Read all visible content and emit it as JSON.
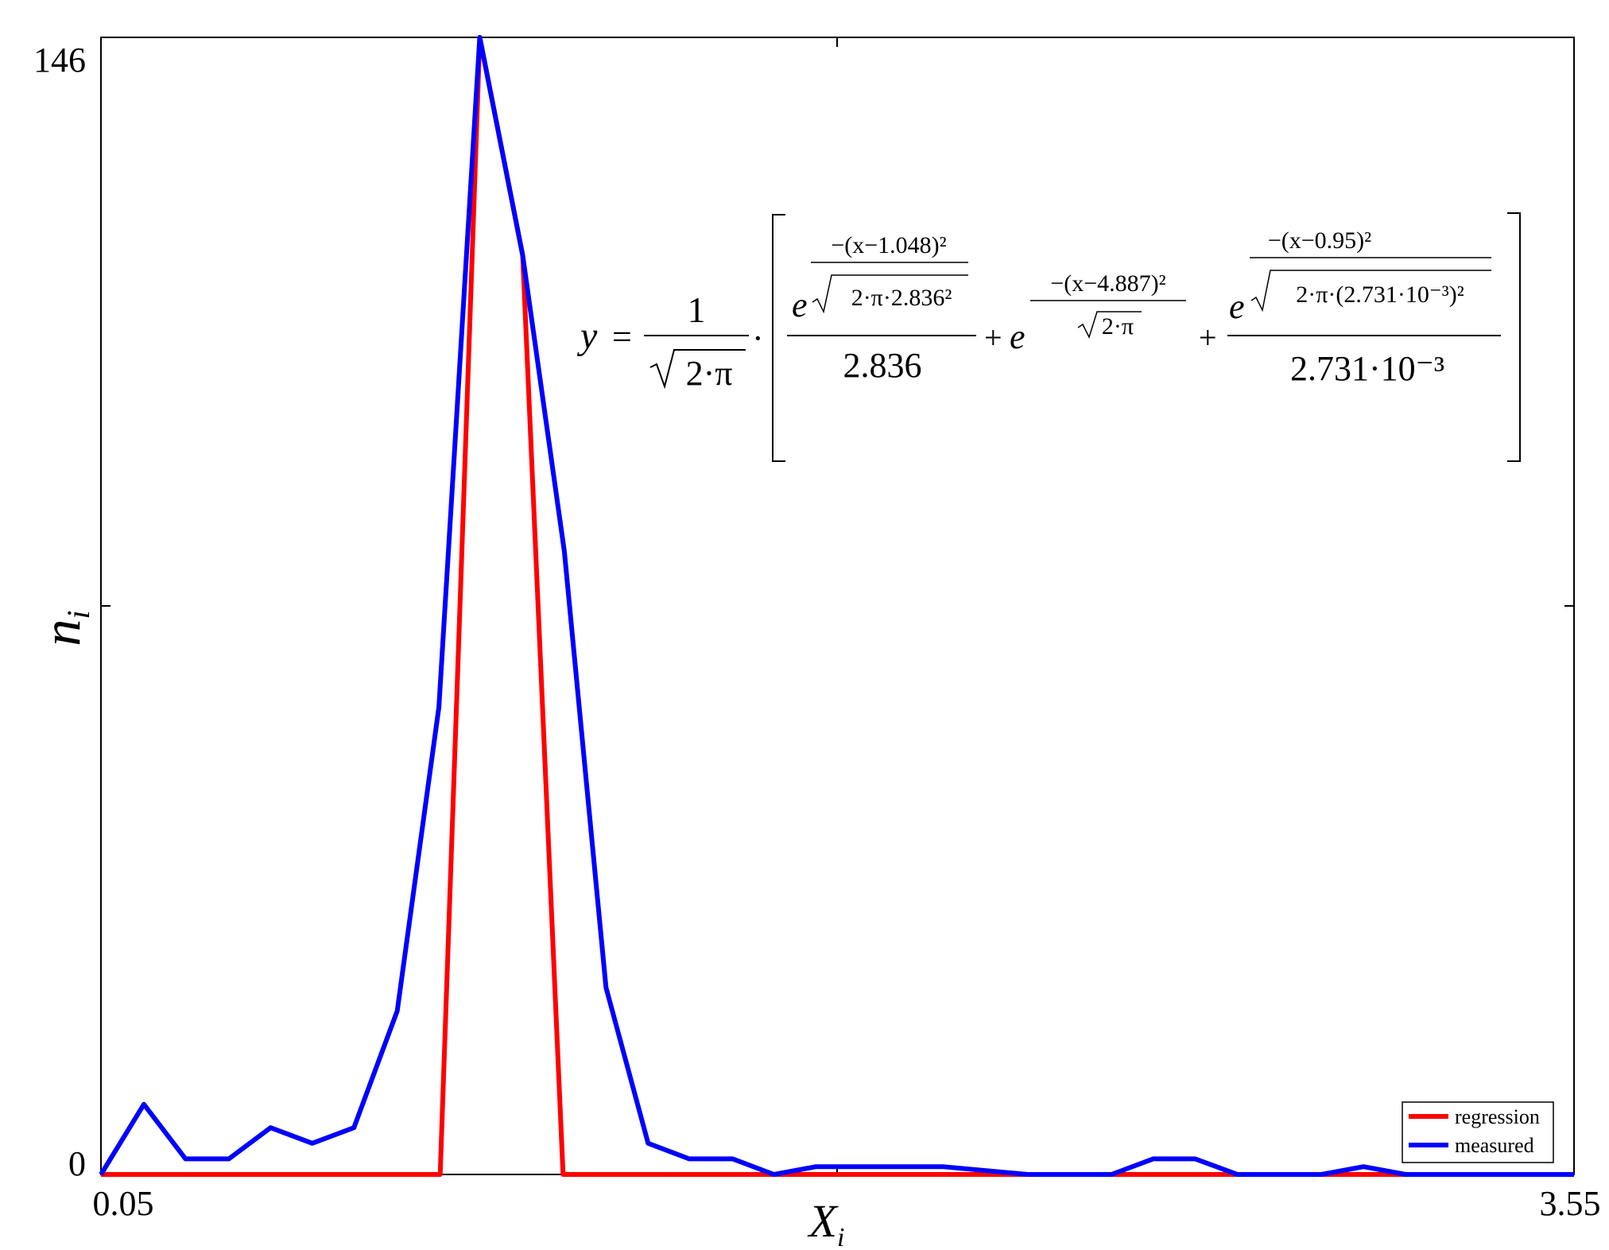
{
  "chart_data": {
    "type": "line",
    "title": "",
    "xlabel": "X",
    "xlabel_sub": "i",
    "ylabel": "n",
    "ylabel_sub": "i",
    "xlim": [
      0.05,
      3.55
    ],
    "ylim": [
      0,
      146
    ],
    "x_tick_labels": [
      "0.05",
      "3.55"
    ],
    "y_tick_labels": [
      "0",
      "146"
    ],
    "grid": false,
    "legend_placement": "bottom-right",
    "colors": {
      "regression": "#ff0000",
      "measured": "#0000ff"
    },
    "series": [
      {
        "name": "regression",
        "color": "#ff0000",
        "x": [
          0.05,
          0.856,
          0.95,
          1.052,
          1.148,
          3.55
        ],
        "y": [
          0,
          0,
          146,
          118,
          0,
          0
        ]
      },
      {
        "name": "measured",
        "color": "#0000ff",
        "x": [
          0.05,
          0.152,
          0.251,
          0.354,
          0.453,
          0.552,
          0.651,
          0.754,
          0.853,
          0.95,
          1.052,
          1.151,
          1.25,
          1.35,
          1.448,
          1.551,
          1.649,
          1.749,
          1.851,
          2.05,
          2.252,
          2.451,
          2.55,
          2.65,
          2.75,
          2.95,
          3.05,
          3.15,
          3.35,
          3.45,
          3.55
        ],
        "y": [
          0,
          9,
          2,
          2,
          6,
          4,
          6,
          21,
          60,
          146,
          118,
          80,
          24,
          4,
          2,
          2,
          0,
          1,
          1,
          1,
          0,
          0,
          2,
          2,
          0,
          0,
          1,
          0,
          0,
          0,
          0
        ]
      }
    ]
  },
  "equation": {
    "lhs": "y",
    "eq": "=",
    "frac_num": "1",
    "frac_den": "2·π",
    "dot": "·",
    "term1_e": "e",
    "term1_exp_num": "−(x−1.048)²",
    "term1_exp_den": "2·π·2.836²",
    "term1_den": "2.836",
    "plus": "+",
    "term2_e": "e",
    "term2_exp_num": "−(x−4.887)²",
    "term2_exp_den": "2·π",
    "term3_e": "e",
    "term3_exp_num": "−(x−0.95)²",
    "term3_exp_den": "2·π·(2.731·10⁻³)²",
    "term3_den": "2.731·10⁻³"
  }
}
